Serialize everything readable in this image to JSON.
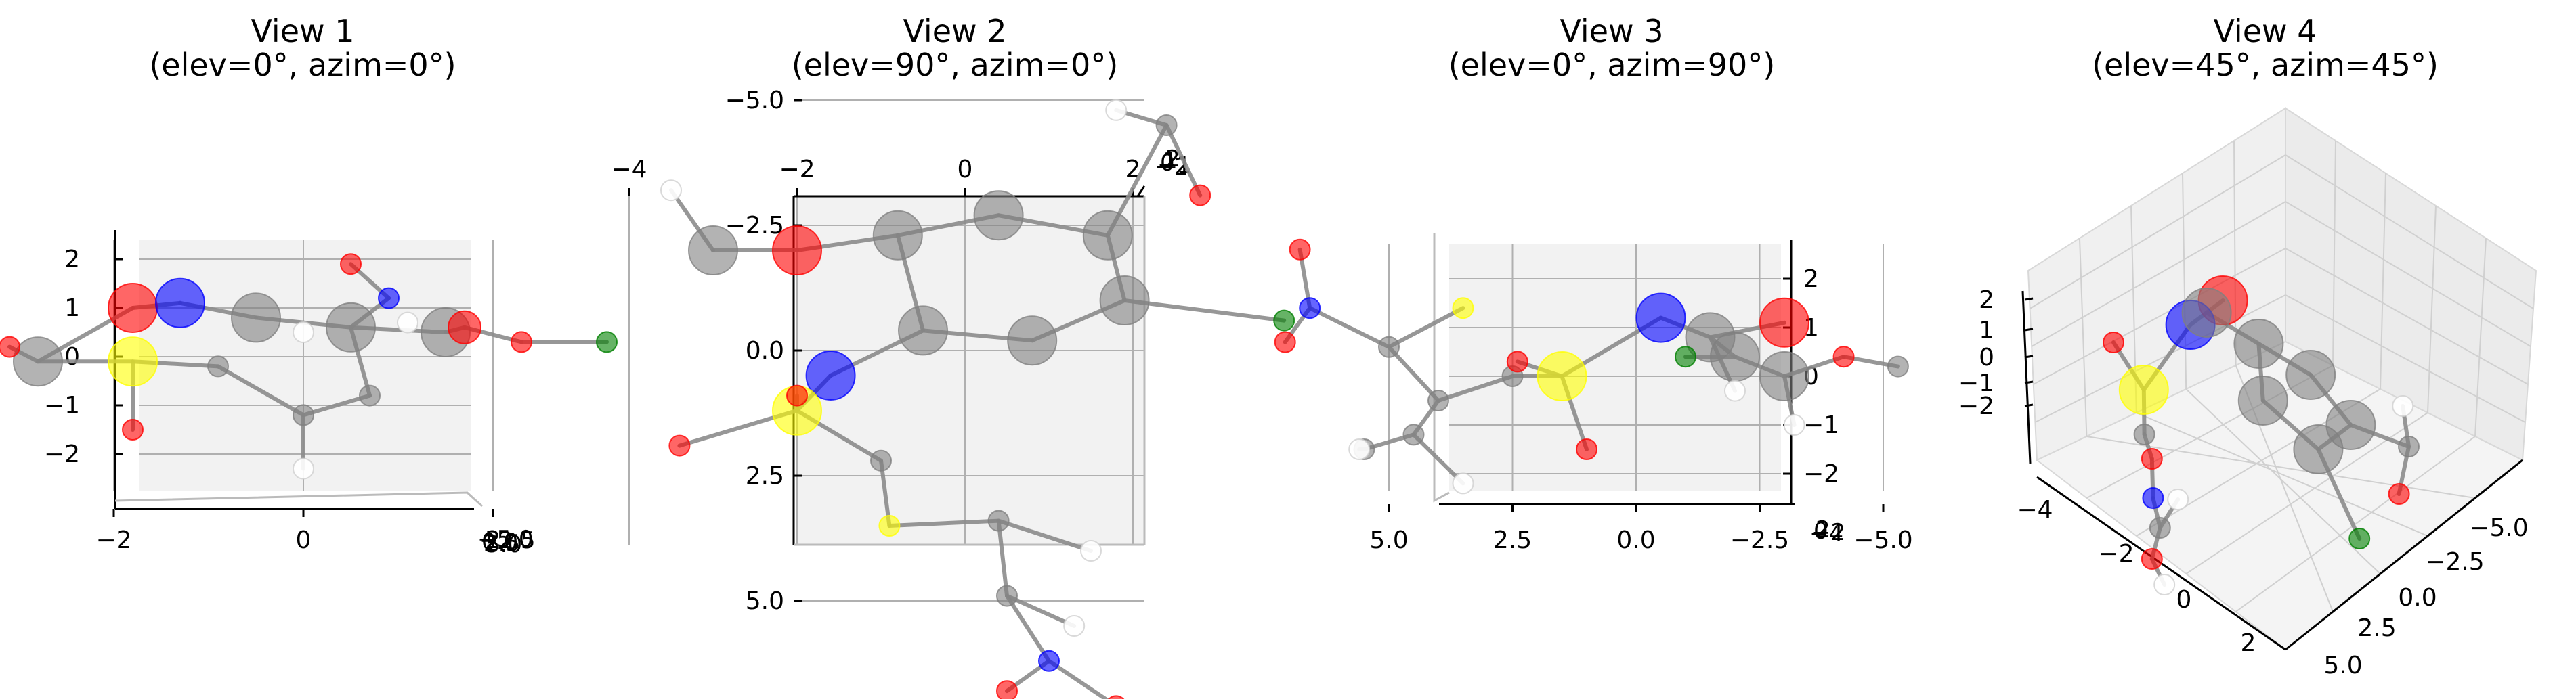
{
  "figure": {
    "background": "#ffffff",
    "pane_color": "#f2f2f2",
    "grid_color": "#b0b0b0",
    "bond_color": "#8c8c8c",
    "atom_colors": {
      "C": "#808080",
      "O": "#ff0000",
      "N": "#0000ff",
      "S": "#ffff00",
      "Cl": "#008000",
      "H": "#ffffff"
    }
  },
  "chart_data": [
    {
      "type": "scatter",
      "title": "View 1\n(elev=0°, azim=0°)",
      "view": {
        "elev": 0,
        "azim": 0
      },
      "x_ticklabels": [
        "−4",
        "−2",
        "0",
        "2"
      ],
      "y_ticklabels": [
        "2",
        "1",
        "0",
        "−1",
        "−2"
      ],
      "depth_ticklabels": [
        "−5.0",
        "−2.5",
        "0.0",
        "2.5",
        "5.0"
      ],
      "xlim": [
        -4,
        3.5
      ],
      "ylim": [
        -2.5,
        2.5
      ],
      "atoms": [
        {
          "el": "O",
          "x": 0.5,
          "y": 1.9,
          "s": "s"
        },
        {
          "el": "N",
          "x": 0.9,
          "y": 1.2,
          "s": "s"
        },
        {
          "el": "O",
          "x": -1.8,
          "y": 1.0,
          "s": "l"
        },
        {
          "el": "N",
          "x": -1.3,
          "y": 1.1,
          "s": "l"
        },
        {
          "el": "C",
          "x": -0.5,
          "y": 0.8,
          "s": "l"
        },
        {
          "el": "C",
          "x": 0.5,
          "y": 0.6,
          "s": "l"
        },
        {
          "el": "C",
          "x": 1.5,
          "y": 0.5,
          "s": "l"
        },
        {
          "el": "O",
          "x": 1.7,
          "y": 0.6,
          "s": "m"
        },
        {
          "el": "O",
          "x": 2.3,
          "y": 0.3,
          "s": "s"
        },
        {
          "el": "Cl",
          "x": 3.2,
          "y": 0.3,
          "s": "s"
        },
        {
          "el": "C",
          "x": -2.8,
          "y": -0.1,
          "s": "l"
        },
        {
          "el": "S",
          "x": -1.8,
          "y": -0.1,
          "s": "l"
        },
        {
          "el": "O",
          "x": -3.1,
          "y": 0.2,
          "s": "s"
        },
        {
          "el": "C",
          "x": -0.9,
          "y": -0.2,
          "s": "s"
        },
        {
          "el": "C",
          "x": 0.0,
          "y": -1.2,
          "s": "s"
        },
        {
          "el": "C",
          "x": 0.7,
          "y": -0.8,
          "s": "s"
        },
        {
          "el": "O",
          "x": -1.8,
          "y": -1.5,
          "s": "s"
        },
        {
          "el": "H",
          "x": 0.0,
          "y": 0.5,
          "s": "s"
        },
        {
          "el": "H",
          "x": 1.1,
          "y": 0.7,
          "s": "s"
        },
        {
          "el": "H",
          "x": 0.0,
          "y": -2.3,
          "s": "s"
        }
      ],
      "bonds": [
        [
          0,
          1
        ],
        [
          2,
          3
        ],
        [
          3,
          4
        ],
        [
          4,
          5
        ],
        [
          5,
          6
        ],
        [
          6,
          7
        ],
        [
          7,
          8
        ],
        [
          8,
          9
        ],
        [
          2,
          10
        ],
        [
          10,
          11
        ],
        [
          10,
          12
        ],
        [
          11,
          13
        ],
        [
          13,
          14
        ],
        [
          14,
          15
        ],
        [
          15,
          5
        ],
        [
          11,
          16
        ],
        [
          14,
          19
        ],
        [
          1,
          5
        ]
      ]
    },
    {
      "type": "scatter",
      "title": "View 2\n(elev=90°, azim=0°)",
      "view": {
        "elev": 90,
        "azim": 0
      },
      "x_ticklabels": [
        "−4",
        "−2",
        "0",
        "2"
      ],
      "y_ticklabels": [
        "−5.0",
        "−2.5",
        "0.0",
        "2.5",
        "5.0"
      ],
      "depth_ticklabels": [
        "−2",
        "−1",
        "0",
        "1",
        "2"
      ],
      "xlim": [
        -4,
        4.5
      ],
      "ylim": [
        -6.0,
        6.5
      ],
      "atoms": [
        {
          "el": "C",
          "x": -3.0,
          "y": -2.0,
          "s": "l"
        },
        {
          "el": "O",
          "x": -2.0,
          "y": -2.0,
          "s": "l"
        },
        {
          "el": "C",
          "x": -0.8,
          "y": -2.3,
          "s": "l"
        },
        {
          "el": "C",
          "x": 0.4,
          "y": -2.7,
          "s": "l"
        },
        {
          "el": "C",
          "x": 1.7,
          "y": -2.3,
          "s": "l"
        },
        {
          "el": "C",
          "x": 1.9,
          "y": -1.0,
          "s": "l"
        },
        {
          "el": "C",
          "x": 0.8,
          "y": -0.2,
          "s": "l"
        },
        {
          "el": "C",
          "x": -0.5,
          "y": -0.4,
          "s": "l"
        },
        {
          "el": "C",
          "x": 2.4,
          "y": -4.5,
          "s": "s"
        },
        {
          "el": "O",
          "x": 2.8,
          "y": -3.1,
          "s": "s"
        },
        {
          "el": "Cl",
          "x": 3.8,
          "y": -0.6,
          "s": "s"
        },
        {
          "el": "N",
          "x": -1.6,
          "y": 0.5,
          "s": "l"
        },
        {
          "el": "S",
          "x": -2.0,
          "y": 1.2,
          "s": "l"
        },
        {
          "el": "O",
          "x": -2.0,
          "y": 0.9,
          "s": "s"
        },
        {
          "el": "O",
          "x": -3.4,
          "y": 1.9,
          "s": "s"
        },
        {
          "el": "C",
          "x": -1.0,
          "y": 2.2,
          "s": "s"
        },
        {
          "el": "S",
          "x": -0.9,
          "y": 3.5,
          "s": "s"
        },
        {
          "el": "C",
          "x": 0.4,
          "y": 3.4,
          "s": "s"
        },
        {
          "el": "C",
          "x": 0.5,
          "y": 4.9,
          "s": "s"
        },
        {
          "el": "N",
          "x": 1.0,
          "y": 6.2,
          "s": "s"
        },
        {
          "el": "O",
          "x": 0.5,
          "y": 6.8,
          "s": "s"
        },
        {
          "el": "O",
          "x": 1.8,
          "y": 7.1,
          "s": "s"
        },
        {
          "el": "H",
          "x": -3.5,
          "y": -3.2,
          "s": "s"
        },
        {
          "el": "H",
          "x": 1.8,
          "y": -4.8,
          "s": "s"
        },
        {
          "el": "H",
          "x": 1.5,
          "y": 4.0,
          "s": "s"
        },
        {
          "el": "H",
          "x": 1.3,
          "y": 5.5,
          "s": "s"
        }
      ],
      "bonds": [
        [
          0,
          1
        ],
        [
          1,
          2
        ],
        [
          2,
          3
        ],
        [
          3,
          4
        ],
        [
          4,
          5
        ],
        [
          5,
          6
        ],
        [
          6,
          7
        ],
        [
          7,
          2
        ],
        [
          4,
          8
        ],
        [
          8,
          9
        ],
        [
          5,
          10
        ],
        [
          7,
          11
        ],
        [
          11,
          12
        ],
        [
          12,
          13
        ],
        [
          12,
          14
        ],
        [
          12,
          15
        ],
        [
          15,
          16
        ],
        [
          16,
          17
        ],
        [
          17,
          18
        ],
        [
          18,
          19
        ],
        [
          19,
          20
        ],
        [
          19,
          21
        ],
        [
          0,
          22
        ],
        [
          8,
          23
        ],
        [
          17,
          24
        ],
        [
          18,
          25
        ]
      ]
    },
    {
      "type": "scatter",
      "title": "View 3\n(elev=0°, azim=90°)",
      "view": {
        "elev": 0,
        "azim": 90
      },
      "x_ticklabels": [
        "5.0",
        "2.5",
        "0.0",
        "−2.5",
        "−5.0"
      ],
      "y_ticklabels": [
        "2",
        "1",
        "0",
        "−1",
        "−2"
      ],
      "depth_ticklabels": [
        "−4",
        "−2",
        "0",
        "2"
      ],
      "xlim": [
        7.0,
        -5.5
      ],
      "ylim": [
        -2.5,
        2.5
      ],
      "atoms": [
        {
          "el": "O",
          "x": 6.8,
          "y": 2.6,
          "s": "s"
        },
        {
          "el": "N",
          "x": 6.6,
          "y": 1.4,
          "s": "s"
        },
        {
          "el": "O",
          "x": 7.1,
          "y": 0.7,
          "s": "s"
        },
        {
          "el": "S",
          "x": 3.5,
          "y": 1.4,
          "s": "s"
        },
        {
          "el": "C",
          "x": 5.0,
          "y": 0.6,
          "s": "s"
        },
        {
          "el": "C",
          "x": 4.0,
          "y": -0.5,
          "s": "s"
        },
        {
          "el": "C",
          "x": 2.5,
          "y": 0.0,
          "s": "s"
        },
        {
          "el": "C",
          "x": 5.5,
          "y": -1.5,
          "s": "s"
        },
        {
          "el": "C",
          "x": 4.5,
          "y": -1.2,
          "s": "s"
        },
        {
          "el": "O",
          "x": 1.0,
          "y": -1.5,
          "s": "s"
        },
        {
          "el": "S",
          "x": 1.5,
          "y": 0.0,
          "s": "l"
        },
        {
          "el": "O",
          "x": 2.4,
          "y": 0.3,
          "s": "s"
        },
        {
          "el": "N",
          "x": -0.5,
          "y": 1.2,
          "s": "l"
        },
        {
          "el": "C",
          "x": -1.5,
          "y": 0.8,
          "s": "l"
        },
        {
          "el": "O",
          "x": -3.0,
          "y": 1.1,
          "s": "l"
        },
        {
          "el": "C",
          "x": -2.0,
          "y": 0.4,
          "s": "l"
        },
        {
          "el": "C",
          "x": -3.0,
          "y": 0.0,
          "s": "l"
        },
        {
          "el": "Cl",
          "x": -1.0,
          "y": 0.4,
          "s": "s"
        },
        {
          "el": "O",
          "x": -4.2,
          "y": 0.4,
          "s": "s"
        },
        {
          "el": "C",
          "x": -5.3,
          "y": 0.2,
          "s": "s"
        },
        {
          "el": "H",
          "x": -3.2,
          "y": -1.0,
          "s": "s"
        },
        {
          "el": "H",
          "x": 5.6,
          "y": -1.5,
          "s": "s"
        },
        {
          "el": "H",
          "x": 3.5,
          "y": -2.2,
          "s": "s"
        },
        {
          "el": "H",
          "x": -2.0,
          "y": -0.3,
          "s": "s"
        }
      ],
      "bonds": [
        [
          0,
          1
        ],
        [
          1,
          2
        ],
        [
          1,
          4
        ],
        [
          4,
          5
        ],
        [
          5,
          6
        ],
        [
          4,
          3
        ],
        [
          5,
          8
        ],
        [
          8,
          7
        ],
        [
          6,
          10
        ],
        [
          10,
          9
        ],
        [
          10,
          11
        ],
        [
          10,
          12
        ],
        [
          12,
          13
        ],
        [
          13,
          14
        ],
        [
          13,
          15
        ],
        [
          15,
          16
        ],
        [
          16,
          18
        ],
        [
          18,
          19
        ],
        [
          15,
          17
        ],
        [
          16,
          20
        ],
        [
          7,
          21
        ],
        [
          8,
          22
        ],
        [
          13,
          23
        ]
      ]
    },
    {
      "type": "scatter",
      "title": "View 4\n(elev=45°, azim=45°)",
      "view": {
        "elev": 45,
        "azim": 45
      },
      "x_ticklabels": [
        "−4",
        "−2",
        "0",
        "2"
      ],
      "y_ticklabels": [
        "−5.0",
        "−2.5",
        "0.0",
        "2.5",
        "5.0"
      ],
      "z_ticklabels": [
        "2",
        "1",
        "0",
        "−1",
        "−2"
      ],
      "atoms": [
        {
          "el": "O",
          "x": -1.0,
          "y": 1.2,
          "s": "l"
        },
        {
          "el": "N",
          "x": -1.6,
          "y": 0.6,
          "s": "l"
        },
        {
          "el": "C",
          "x": -1.3,
          "y": 0.9,
          "s": "l"
        },
        {
          "el": "C",
          "x": -0.2,
          "y": 0.6,
          "s": "l"
        },
        {
          "el": "C",
          "x": 0.9,
          "y": 0.3,
          "s": "l"
        },
        {
          "el": "C",
          "x": 1.8,
          "y": -0.4,
          "s": "l"
        },
        {
          "el": "C",
          "x": 0.0,
          "y": -0.4,
          "s": "l"
        },
        {
          "el": "C",
          "x": 1.2,
          "y": -1.0,
          "s": "l"
        },
        {
          "el": "C",
          "x": 3.0,
          "y": -0.5,
          "s": "s"
        },
        {
          "el": "O",
          "x": 2.9,
          "y": -1.4,
          "s": "s"
        },
        {
          "el": "Cl",
          "x": 2.2,
          "y": -2.4,
          "s": "s"
        },
        {
          "el": "S",
          "x": -2.4,
          "y": -0.8,
          "s": "l"
        },
        {
          "el": "O",
          "x": -3.1,
          "y": -0.1,
          "s": "s"
        },
        {
          "el": "C",
          "x": -2.3,
          "y": -1.6,
          "s": "s"
        },
        {
          "el": "O",
          "x": -2.1,
          "y": -2.0,
          "s": "s"
        },
        {
          "el": "N",
          "x": -2.0,
          "y": -2.7,
          "s": "s"
        },
        {
          "el": "C",
          "x": -1.8,
          "y": -3.2,
          "s": "s"
        },
        {
          "el": "O",
          "x": -1.9,
          "y": -3.8,
          "s": "s"
        },
        {
          "el": "H",
          "x": -1.6,
          "y": -4.2,
          "s": "s"
        },
        {
          "el": "H",
          "x": -1.5,
          "y": -2.6,
          "s": "s"
        },
        {
          "el": "H",
          "x": 2.8,
          "y": 0.2,
          "s": "s"
        }
      ],
      "bonds": [
        [
          0,
          1
        ],
        [
          1,
          2
        ],
        [
          2,
          3
        ],
        [
          3,
          4
        ],
        [
          4,
          5
        ],
        [
          3,
          6
        ],
        [
          6,
          7
        ],
        [
          7,
          5
        ],
        [
          5,
          8
        ],
        [
          8,
          9
        ],
        [
          7,
          10
        ],
        [
          1,
          11
        ],
        [
          11,
          12
        ],
        [
          11,
          13
        ],
        [
          13,
          14
        ],
        [
          14,
          15
        ],
        [
          15,
          16
        ],
        [
          16,
          17
        ],
        [
          17,
          18
        ],
        [
          16,
          19
        ],
        [
          8,
          20
        ]
      ]
    }
  ]
}
